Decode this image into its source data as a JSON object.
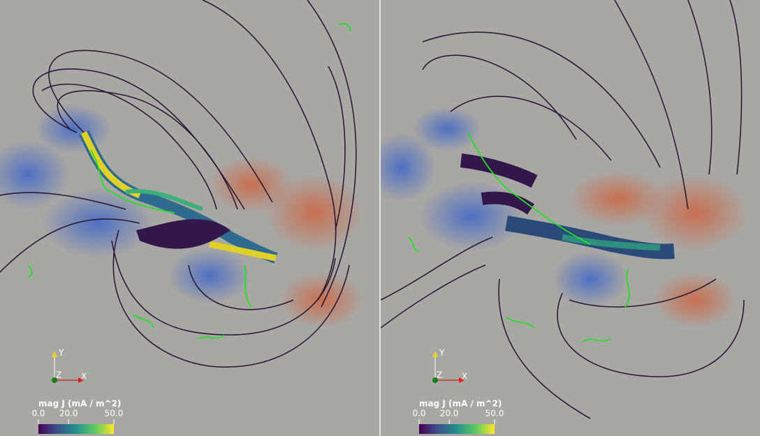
{
  "panels": [
    {
      "colorbar": {
        "title": "mag J (mA / m^2)",
        "range": [
          0,
          50
        ],
        "ticks": [
          {
            "value": 0,
            "label": "0.0"
          },
          {
            "value": 20,
            "label": "20.0"
          },
          {
            "value": 50,
            "label": "50.0"
          }
        ]
      },
      "axes": {
        "y": "Y",
        "z": "Z",
        "x": "X"
      }
    },
    {
      "colorbar": {
        "title": "mag J (mA / m^2)",
        "range": [
          0,
          50
        ],
        "ticks": [
          {
            "value": 0,
            "label": "0.0"
          },
          {
            "value": 20,
            "label": "20.0"
          },
          {
            "value": 50,
            "label": "50.0"
          }
        ]
      },
      "axes": {
        "y": "Y",
        "z": "Z",
        "x": "X"
      }
    }
  ]
}
